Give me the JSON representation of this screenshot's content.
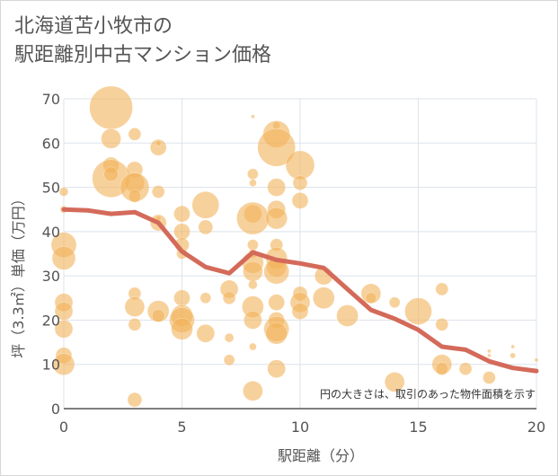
{
  "title_line1": "北海道苫小牧市の",
  "title_line2": "駅距離別中古マンション価格",
  "chart_data": {
    "type": "scatter",
    "xlabel": "駅距離（分）",
    "ylabel": "坪（3.3㎡）単価（万円）",
    "xlim": [
      0,
      20
    ],
    "ylim": [
      0,
      70
    ],
    "xticks": [
      0,
      5,
      10,
      15,
      20
    ],
    "yticks": [
      0,
      10,
      20,
      30,
      40,
      50,
      60,
      70
    ],
    "grid": true,
    "annotation": "円の大きさは、取引のあった物件面積を示す",
    "bubble_color": "#f2b25a",
    "line_color": "#d46a5a",
    "series": [
      {
        "type": "line",
        "points": [
          [
            0,
            45
          ],
          [
            1,
            44.8
          ],
          [
            2,
            44
          ],
          [
            3,
            44.4
          ],
          [
            4,
            42
          ],
          [
            5,
            35.5
          ],
          [
            6,
            32
          ],
          [
            7,
            30.6
          ],
          [
            8,
            35.3
          ],
          [
            9,
            33.6
          ],
          [
            10,
            32.8
          ],
          [
            11,
            31.8
          ],
          [
            12,
            27
          ],
          [
            13,
            22.3
          ],
          [
            14,
            20.3
          ],
          [
            15,
            17.8
          ],
          [
            16,
            14
          ],
          [
            17,
            13.3
          ],
          [
            18,
            10.7
          ],
          [
            19,
            9.2
          ],
          [
            20,
            8.5
          ]
        ]
      },
      {
        "type": "bubble",
        "points": [
          [
            0,
            37,
            14
          ],
          [
            0,
            34,
            13
          ],
          [
            0,
            24,
            10
          ],
          [
            0,
            22,
            10
          ],
          [
            0,
            18,
            10
          ],
          [
            0,
            12,
            9
          ],
          [
            0,
            10,
            12
          ],
          [
            0,
            49,
            5
          ],
          [
            0,
            45,
            4
          ],
          [
            2,
            68,
            24
          ],
          [
            2,
            61,
            11
          ],
          [
            2,
            55,
            9
          ],
          [
            2,
            52,
            21
          ],
          [
            2,
            53,
            8
          ],
          [
            3,
            62,
            7
          ],
          [
            3,
            54,
            9
          ],
          [
            3,
            51,
            11
          ],
          [
            3,
            50,
            16
          ],
          [
            3,
            48,
            7
          ],
          [
            3,
            26,
            7
          ],
          [
            3,
            23,
            11
          ],
          [
            3,
            19,
            7
          ],
          [
            3,
            2,
            8
          ],
          [
            4,
            59,
            9
          ],
          [
            4,
            60,
            3
          ],
          [
            4,
            49,
            7
          ],
          [
            4,
            42,
            9
          ],
          [
            4,
            43,
            3
          ],
          [
            4,
            22,
            12
          ],
          [
            4,
            21,
            7
          ],
          [
            5,
            44,
            9
          ],
          [
            5,
            40,
            9
          ],
          [
            5,
            37,
            8
          ],
          [
            5,
            35,
            6
          ],
          [
            5,
            25,
            9
          ],
          [
            5,
            21,
            12
          ],
          [
            5,
            20,
            14
          ],
          [
            5,
            18,
            12
          ],
          [
            6,
            46,
            15
          ],
          [
            6,
            41,
            8
          ],
          [
            6,
            25,
            6
          ],
          [
            6,
            17,
            10
          ],
          [
            7,
            27,
            10
          ],
          [
            7,
            25,
            7
          ],
          [
            7,
            16,
            5
          ],
          [
            7,
            11,
            6
          ],
          [
            8,
            66,
            2
          ],
          [
            8,
            53,
            6
          ],
          [
            8,
            51,
            4
          ],
          [
            8,
            44,
            10
          ],
          [
            8,
            43,
            18
          ],
          [
            8,
            37,
            6
          ],
          [
            8,
            35,
            5
          ],
          [
            8,
            33,
            12
          ],
          [
            8,
            31,
            11
          ],
          [
            8,
            28,
            5
          ],
          [
            8,
            23,
            12
          ],
          [
            8,
            20,
            10
          ],
          [
            8,
            14,
            4
          ],
          [
            8,
            4,
            11
          ],
          [
            9,
            64,
            4
          ],
          [
            9,
            62,
            15
          ],
          [
            9,
            59,
            21
          ],
          [
            9,
            50,
            10
          ],
          [
            9,
            45,
            10
          ],
          [
            9,
            43,
            12
          ],
          [
            9,
            37,
            7
          ],
          [
            9,
            34,
            12
          ],
          [
            9,
            32,
            11
          ],
          [
            9,
            31,
            14
          ],
          [
            9,
            24,
            9
          ],
          [
            9,
            20,
            9
          ],
          [
            9,
            18,
            14
          ],
          [
            9,
            17,
            12
          ],
          [
            9,
            9,
            10
          ],
          [
            10,
            55,
            16
          ],
          [
            10,
            51,
            8
          ],
          [
            10,
            47,
            9
          ],
          [
            10,
            26,
            8
          ],
          [
            10,
            24,
            11
          ],
          [
            10,
            22,
            9
          ],
          [
            11,
            30,
            10
          ],
          [
            11,
            25,
            12
          ],
          [
            12,
            21,
            12
          ],
          [
            13,
            26,
            11
          ],
          [
            13,
            25,
            6
          ],
          [
            14,
            24,
            6
          ],
          [
            14,
            6,
            11
          ],
          [
            15,
            22,
            15
          ],
          [
            16,
            27,
            7
          ],
          [
            16,
            19,
            7
          ],
          [
            16,
            10,
            11
          ],
          [
            16,
            9,
            7
          ],
          [
            17,
            9,
            7
          ],
          [
            18,
            13,
            2
          ],
          [
            18,
            12,
            2
          ],
          [
            18,
            7,
            7
          ],
          [
            19,
            14,
            2
          ],
          [
            19,
            12,
            3
          ],
          [
            20,
            11,
            2
          ]
        ]
      }
    ]
  }
}
